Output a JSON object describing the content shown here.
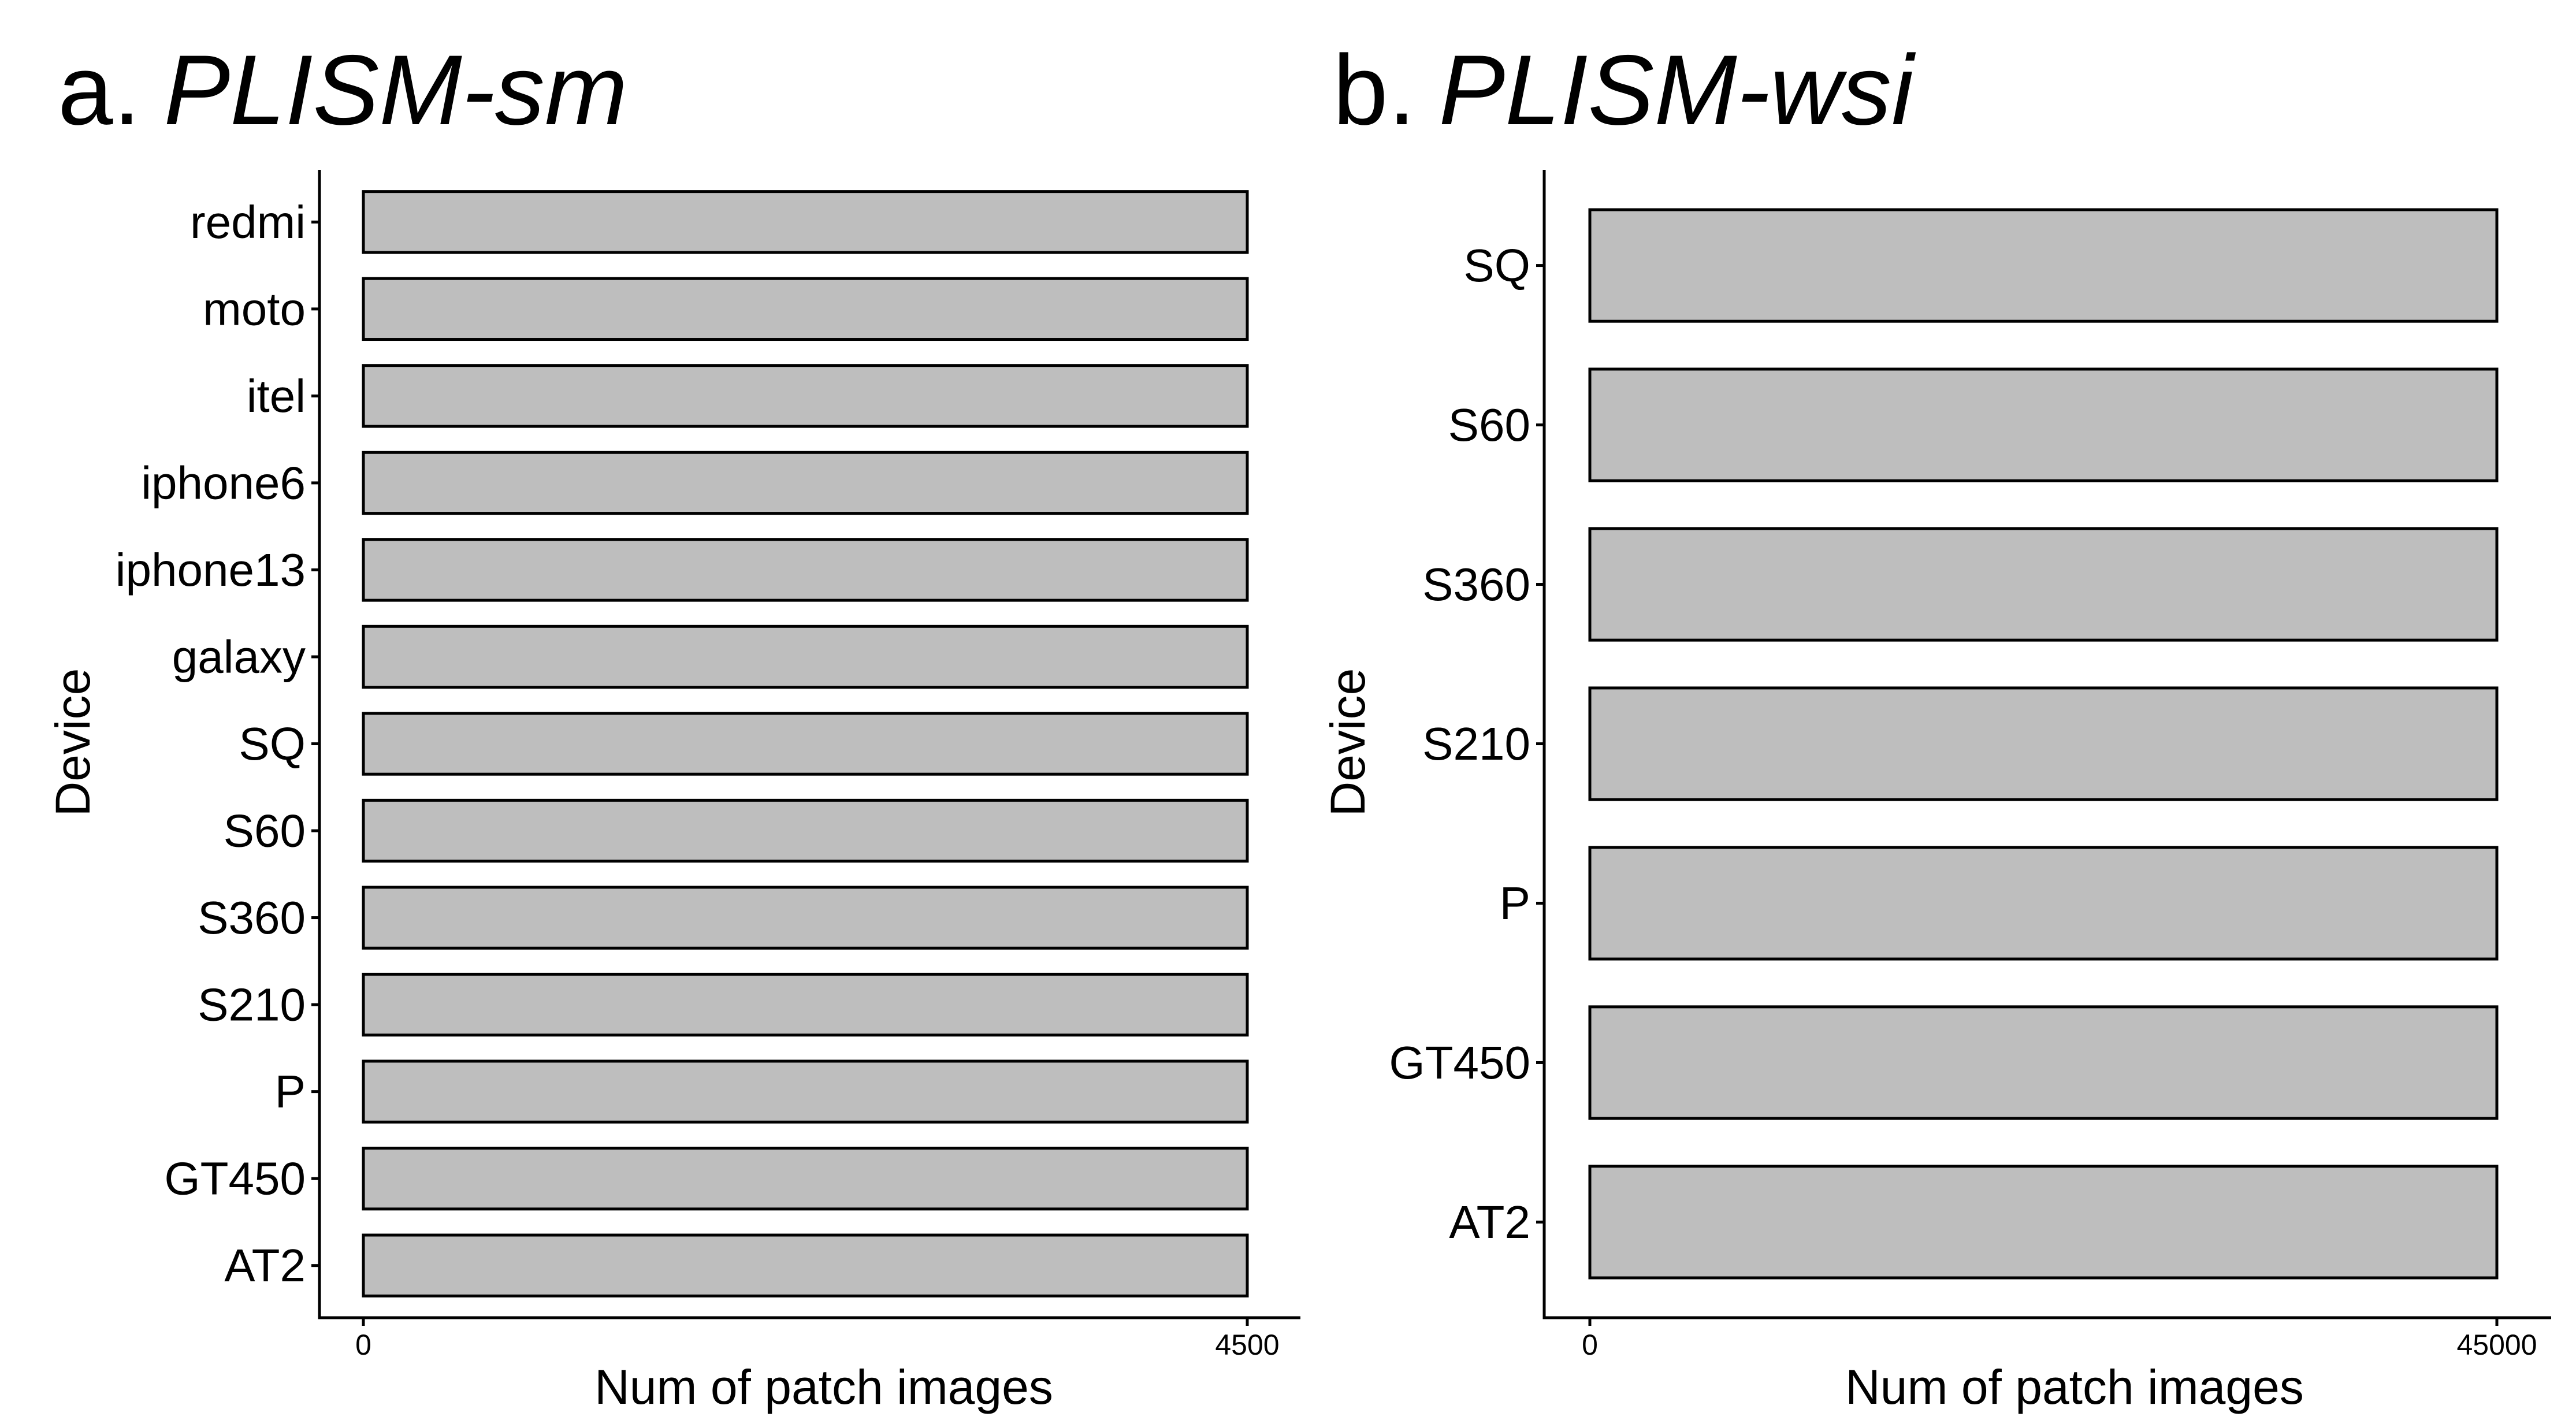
{
  "chart_data": [
    {
      "type": "bar",
      "orientation": "horizontal",
      "title_prefix": "a.",
      "title": "PLISM-sm",
      "xlabel": "Num of patch images",
      "ylabel": "Device",
      "categories": [
        "redmi",
        "moto",
        "itel",
        "iphone6",
        "iphone13",
        "galaxy",
        "SQ",
        "S60",
        "S360",
        "S210",
        "P",
        "GT450",
        "AT2"
      ],
      "values": [
        4500,
        4500,
        4500,
        4500,
        4500,
        4500,
        4500,
        4500,
        4500,
        4500,
        4500,
        4500,
        4500
      ],
      "xlim": [
        0,
        4500
      ],
      "xticks": [
        "0",
        "4500"
      ],
      "bar_color": "#bebebe",
      "grid": false,
      "legend": "none"
    },
    {
      "type": "bar",
      "orientation": "horizontal",
      "title_prefix": "b.",
      "title": "PLISM-wsi",
      "xlabel": "Num of patch images",
      "ylabel": "Device",
      "categories": [
        "SQ",
        "S60",
        "S360",
        "S210",
        "P",
        "GT450",
        "AT2"
      ],
      "values": [
        45000,
        45000,
        45000,
        45000,
        45000,
        45000,
        45000
      ],
      "xlim": [
        0,
        45000
      ],
      "xticks": [
        "0",
        "45000"
      ],
      "bar_color": "#bebebe",
      "grid": false,
      "legend": "none"
    }
  ]
}
